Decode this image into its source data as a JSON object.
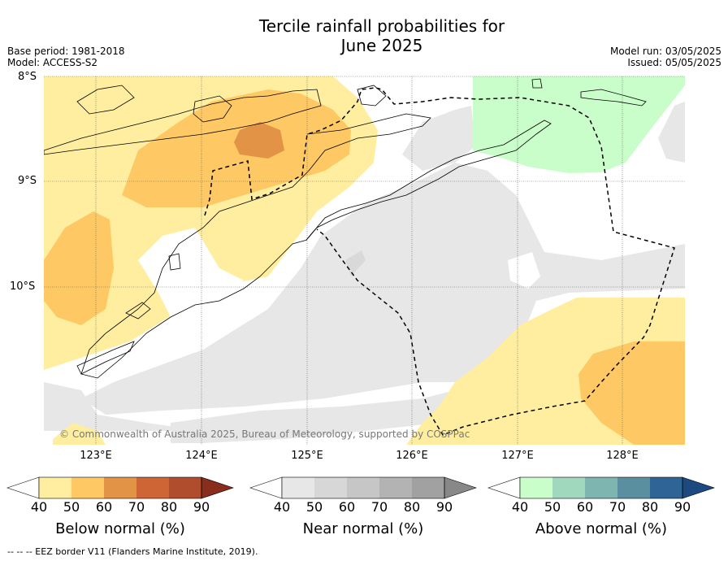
{
  "header": {
    "title_line1": "Tercile rainfall probabilities for",
    "title_line2": "June 2025",
    "base_period": "Base period: 1981-2018",
    "model": "Model: ACCESS-S2",
    "model_run": "Model run: 03/05/2025",
    "issued": "Issued: 05/05/2025"
  },
  "map": {
    "lat_labels": [
      "8°S",
      "9°S",
      "10°S"
    ],
    "lon_labels": [
      "123°E",
      "124°E",
      "125°E",
      "126°E",
      "127°E",
      "128°E"
    ],
    "attribution": "© Commonwealth of Australia 2025, Bureau of Meteorology, supported by COSPPac"
  },
  "colorbars": [
    {
      "title": "Below normal (%)",
      "ticks": [
        "40",
        "50",
        "60",
        "70",
        "80",
        "90"
      ],
      "colors": [
        "#ffffff",
        "#ffeea0",
        "#fec964",
        "#e29346",
        "#ce6535",
        "#b04d2c",
        "#8b2d1c"
      ]
    },
    {
      "title": "Near normal (%)",
      "ticks": [
        "40",
        "50",
        "60",
        "70",
        "80",
        "90"
      ],
      "colors": [
        "#ffffff",
        "#e7e7e7",
        "#d7d7d7",
        "#c6c6c6",
        "#b3b3b3",
        "#a1a1a1",
        "#888888"
      ]
    },
    {
      "title": "Above normal (%)",
      "ticks": [
        "40",
        "50",
        "60",
        "70",
        "80",
        "90"
      ],
      "colors": [
        "#ffffff",
        "#c9fdc9",
        "#a0d8be",
        "#7eb5b0",
        "#598f9f",
        "#2f6497",
        "#1c4a80"
      ]
    }
  ],
  "footer": {
    "legend_text": "--  --  -- EEZ border V11 (Flanders Marine Institute, 2019)."
  }
}
